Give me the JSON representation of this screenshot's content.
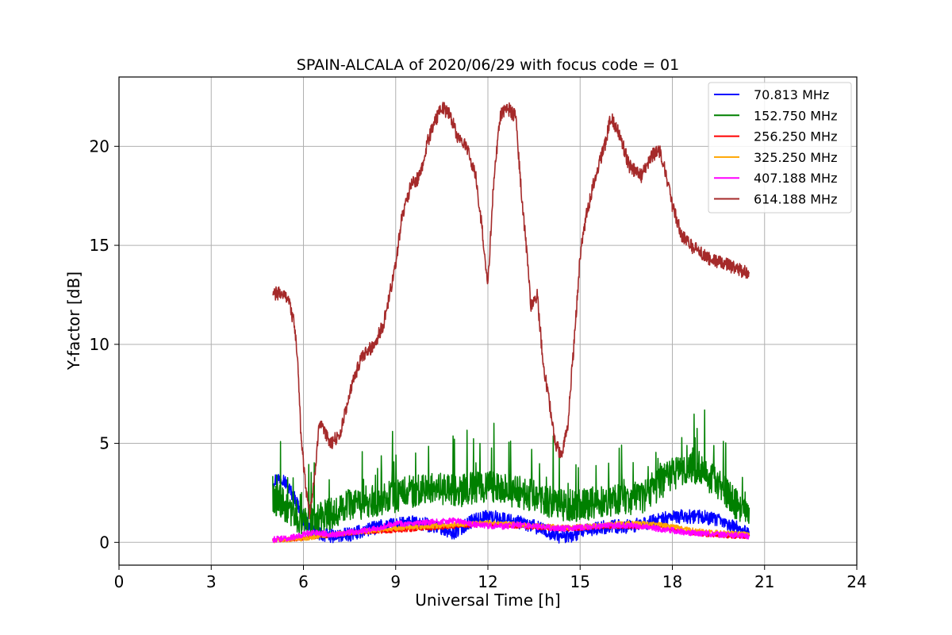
{
  "chart_data": {
    "type": "line",
    "title": "SPAIN-ALCALA of 2020/06/29 with focus code = 01",
    "xlabel": "Universal Time [h]",
    "ylabel": "Y-factor [dB]",
    "xlim": [
      0,
      24
    ],
    "ylim": [
      -1.15,
      23.5
    ],
    "xticks": [
      0,
      3,
      6,
      9,
      12,
      15,
      18,
      21,
      24
    ],
    "xtick_labels": [
      "0",
      "3",
      "6",
      "9",
      "12",
      "15",
      "18",
      "21",
      "24"
    ],
    "yticks": [
      0,
      5,
      10,
      15,
      20
    ],
    "ytick_labels": [
      "0",
      "5",
      "10",
      "15",
      "20"
    ],
    "grid": true,
    "legend_position": "top-right",
    "series": [
      {
        "name": " 70.813 MHz",
        "color": "#0000ff",
        "noise": 0.35,
        "x": [
          5.0,
          5.3,
          5.5,
          5.8,
          6.0,
          6.3,
          6.6,
          7.0,
          7.5,
          8.0,
          8.5,
          9.0,
          9.5,
          10.0,
          10.5,
          10.8,
          11.0,
          11.5,
          12.0,
          12.5,
          13.0,
          13.5,
          14.0,
          14.3,
          14.7,
          15.0,
          15.5,
          16.0,
          16.5,
          17.0,
          17.5,
          18.0,
          18.5,
          19.0,
          19.5,
          20.0,
          20.5
        ],
        "y": [
          3.1,
          3.3,
          2.8,
          2.0,
          1.1,
          0.6,
          0.4,
          0.3,
          0.4,
          0.6,
          0.8,
          0.9,
          1.0,
          0.9,
          0.7,
          0.4,
          0.6,
          1.1,
          1.3,
          1.2,
          1.0,
          0.8,
          0.5,
          0.3,
          0.3,
          0.5,
          0.7,
          0.8,
          0.8,
          0.9,
          1.1,
          1.3,
          1.3,
          1.3,
          1.1,
          0.8,
          0.5
        ]
      },
      {
        "name": "152.750 MHz",
        "color": "#008000",
        "noise": 1.4,
        "x": [
          5.0,
          5.3,
          5.6,
          6.0,
          6.3,
          6.6,
          7.0,
          7.5,
          8.0,
          8.5,
          9.0,
          9.5,
          10.0,
          10.5,
          11.0,
          11.5,
          12.0,
          12.5,
          13.0,
          13.5,
          14.0,
          14.5,
          15.0,
          15.5,
          16.0,
          16.5,
          17.0,
          17.5,
          18.0,
          18.5,
          19.0,
          19.5,
          20.0,
          20.5
        ],
        "y": [
          2.0,
          1.8,
          1.3,
          0.9,
          0.8,
          1.0,
          1.3,
          1.6,
          1.8,
          1.9,
          2.1,
          2.3,
          2.5,
          2.4,
          2.3,
          2.5,
          2.6,
          2.4,
          2.3,
          2.1,
          1.8,
          1.6,
          1.6,
          1.7,
          1.9,
          1.9,
          2.0,
          2.6,
          3.2,
          3.5,
          3.4,
          2.6,
          1.8,
          1.4
        ]
      },
      {
        "name": "256.250 MHz",
        "color": "#ff0000",
        "noise": 0.1,
        "x": [
          5.0,
          5.5,
          6.0,
          6.5,
          7.0,
          7.5,
          8.0,
          8.5,
          9.0,
          9.5,
          10.0,
          10.5,
          11.0,
          11.5,
          12.0,
          12.5,
          13.0,
          13.5,
          14.0,
          14.5,
          15.0,
          15.5,
          16.0,
          16.5,
          17.0,
          17.5,
          18.0,
          18.5,
          19.0,
          19.5,
          20.0,
          20.5
        ],
        "y": [
          0.1,
          0.15,
          0.2,
          0.3,
          0.35,
          0.45,
          0.5,
          0.55,
          0.6,
          0.65,
          0.7,
          0.75,
          0.8,
          0.85,
          0.9,
          0.85,
          0.8,
          0.75,
          0.7,
          0.65,
          0.7,
          0.75,
          0.8,
          0.8,
          0.8,
          0.75,
          0.65,
          0.5,
          0.4,
          0.35,
          0.3,
          0.3
        ]
      },
      {
        "name": "325.250 MHz",
        "color": "#ffa500",
        "noise": 0.12,
        "x": [
          5.0,
          5.5,
          6.0,
          6.5,
          7.0,
          7.5,
          8.0,
          8.5,
          9.0,
          9.5,
          10.0,
          10.5,
          11.0,
          11.5,
          12.0,
          12.5,
          13.0,
          13.5,
          14.0,
          14.5,
          15.0,
          15.5,
          16.0,
          16.5,
          17.0,
          17.5,
          18.0,
          18.5,
          19.0,
          19.5,
          20.0,
          20.5
        ],
        "y": [
          0.1,
          0.15,
          0.2,
          0.3,
          0.4,
          0.5,
          0.55,
          0.65,
          0.7,
          0.75,
          0.8,
          0.85,
          0.9,
          0.95,
          1.0,
          0.95,
          0.9,
          0.85,
          0.8,
          0.75,
          0.8,
          0.85,
          0.9,
          0.95,
          0.95,
          0.9,
          0.8,
          0.65,
          0.55,
          0.5,
          0.45,
          0.4
        ]
      },
      {
        "name": "407.188 MHz",
        "color": "#ff00ff",
        "noise": 0.15,
        "x": [
          5.0,
          5.5,
          6.0,
          6.3,
          6.6,
          7.0,
          7.5,
          8.0,
          8.5,
          9.0,
          9.5,
          10.0,
          10.5,
          11.0,
          11.5,
          12.0,
          12.5,
          13.0,
          13.5,
          14.0,
          14.5,
          15.0,
          15.5,
          16.0,
          16.5,
          17.0,
          17.5,
          18.0,
          18.5,
          19.0,
          19.5,
          20.0,
          20.5
        ],
        "y": [
          0.15,
          0.2,
          0.4,
          0.5,
          0.45,
          0.4,
          0.5,
          0.6,
          0.75,
          1.0,
          0.9,
          1.0,
          1.05,
          1.1,
          0.9,
          0.85,
          0.8,
          0.9,
          0.8,
          0.75,
          0.7,
          0.75,
          0.8,
          0.85,
          0.85,
          0.8,
          0.7,
          0.6,
          0.5,
          0.45,
          0.4,
          0.35,
          0.3
        ]
      },
      {
        "name": "614.188 MHz",
        "color": "#a52a2a",
        "noise": 0.35,
        "x": [
          5.0,
          5.2,
          5.5,
          5.7,
          5.8,
          5.9,
          6.0,
          6.1,
          6.2,
          6.35,
          6.5,
          6.7,
          6.9,
          7.2,
          7.5,
          7.8,
          8.0,
          8.3,
          8.6,
          9.0,
          9.2,
          9.5,
          9.8,
          10.0,
          10.2,
          10.5,
          10.8,
          11.0,
          11.3,
          11.6,
          11.8,
          12.0,
          12.2,
          12.4,
          12.6,
          12.9,
          13.1,
          13.3,
          13.4,
          13.6,
          13.8,
          14.0,
          14.2,
          14.4,
          14.6,
          14.8,
          15.0,
          15.2,
          15.5,
          15.8,
          16.0,
          16.3,
          16.6,
          17.0,
          17.3,
          17.6,
          17.8,
          18.0,
          18.3,
          18.6,
          19.0,
          19.3,
          19.6,
          20.0,
          20.3,
          20.5
        ],
        "y": [
          12.5,
          12.6,
          12.4,
          11.0,
          9.5,
          6.0,
          4.0,
          2.5,
          1.5,
          3.0,
          6.0,
          5.5,
          5.0,
          5.5,
          7.5,
          9.0,
          9.5,
          10.0,
          11.0,
          14.0,
          16.5,
          18.0,
          18.5,
          20.0,
          21.0,
          22.0,
          21.5,
          20.5,
          20.0,
          18.5,
          16.0,
          13.0,
          18.5,
          21.5,
          22.0,
          21.5,
          17.5,
          14.0,
          12.0,
          12.5,
          9.0,
          7.0,
          5.0,
          4.3,
          6.0,
          10.0,
          14.5,
          16.5,
          18.5,
          20.0,
          21.5,
          20.5,
          19.0,
          18.5,
          19.5,
          19.8,
          18.5,
          17.0,
          15.5,
          15.0,
          14.5,
          14.2,
          14.1,
          13.9,
          13.7,
          13.6
        ]
      }
    ]
  }
}
